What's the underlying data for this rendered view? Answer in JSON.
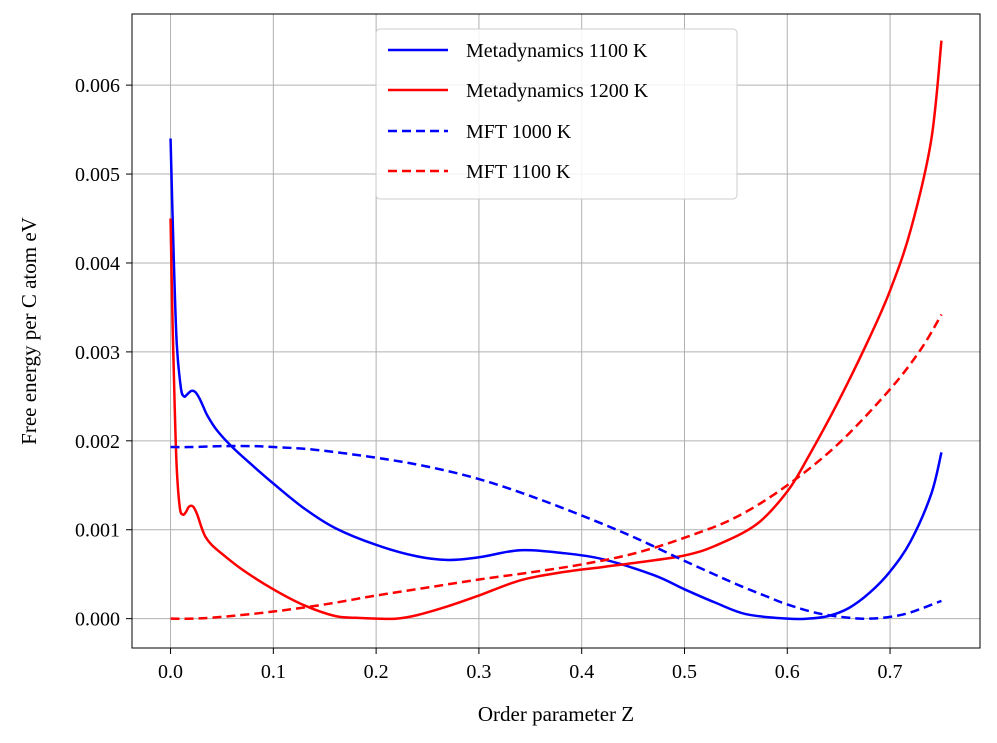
{
  "chart_data": {
    "type": "line",
    "title": "",
    "xlabel": "Order parameter Z",
    "ylabel": "Free energy per C atom eV",
    "xlim": [
      -0.0375,
      0.7875
    ],
    "ylim": [
      -0.00033,
      0.0068
    ],
    "xticks": [
      0.0,
      0.1,
      0.2,
      0.3,
      0.4,
      0.5,
      0.6,
      0.7
    ],
    "xtick_labels": [
      "0.0",
      "0.1",
      "0.2",
      "0.3",
      "0.4",
      "0.5",
      "0.6",
      "0.7"
    ],
    "yticks": [
      0.0,
      0.001,
      0.002,
      0.003,
      0.004,
      0.005,
      0.006
    ],
    "ytick_labels": [
      "0.000",
      "0.001",
      "0.002",
      "0.003",
      "0.004",
      "0.005",
      "0.006"
    ],
    "grid": true,
    "legend_position": "top-center",
    "series": [
      {
        "name": "Metadynamics 1100 K",
        "color": "#0000ff",
        "style": "solid",
        "x": [
          0.0,
          0.003,
          0.006,
          0.01,
          0.013,
          0.016,
          0.02,
          0.024,
          0.028,
          0.032,
          0.036,
          0.045,
          0.06,
          0.08,
          0.1,
          0.13,
          0.16,
          0.2,
          0.24,
          0.27,
          0.3,
          0.34,
          0.38,
          0.42,
          0.47,
          0.5,
          0.53,
          0.56,
          0.6,
          0.62,
          0.64,
          0.66,
          0.68,
          0.7,
          0.72,
          0.74,
          0.75
        ],
        "y": [
          0.0054,
          0.0041,
          0.0031,
          0.0026,
          0.0025,
          0.00252,
          0.00256,
          0.00255,
          0.00248,
          0.00238,
          0.00228,
          0.00212,
          0.00193,
          0.00172,
          0.00152,
          0.00124,
          0.00102,
          0.00083,
          0.0007,
          0.00066,
          0.00069,
          0.00077,
          0.00074,
          0.00067,
          0.00049,
          0.00033,
          0.00018,
          5e-05,
          0.0,
          0.0,
          3e-05,
          0.00012,
          0.00029,
          0.00053,
          0.00087,
          0.0014,
          0.00187
        ]
      },
      {
        "name": "Metadynamics 1200 K",
        "color": "#ff0000",
        "style": "solid",
        "x": [
          0.0,
          0.002,
          0.004,
          0.006,
          0.009,
          0.012,
          0.015,
          0.018,
          0.022,
          0.026,
          0.03,
          0.034,
          0.04,
          0.05,
          0.07,
          0.1,
          0.13,
          0.16,
          0.18,
          0.2,
          0.22,
          0.24,
          0.27,
          0.3,
          0.34,
          0.38,
          0.42,
          0.46,
          0.5,
          0.53,
          0.57,
          0.6,
          0.62,
          0.65,
          0.68,
          0.7,
          0.72,
          0.74,
          0.75
        ],
        "y": [
          0.0045,
          0.0033,
          0.0024,
          0.0017,
          0.00125,
          0.00117,
          0.0012,
          0.00126,
          0.00126,
          0.00117,
          0.00103,
          0.00092,
          0.00083,
          0.00073,
          0.00055,
          0.00033,
          0.00015,
          3e-05,
          1e-05,
          0.0,
          0.0,
          4e-05,
          0.00014,
          0.00026,
          0.00043,
          0.00052,
          0.00058,
          0.00064,
          0.00071,
          0.00082,
          0.00106,
          0.00143,
          0.00181,
          0.00245,
          0.00316,
          0.00369,
          0.00437,
          0.00538,
          0.0065
        ]
      },
      {
        "name": "MFT 1000 K",
        "color": "#0000ff",
        "style": "dashed",
        "x": [
          0.0,
          0.02,
          0.05,
          0.08,
          0.1,
          0.14,
          0.2,
          0.25,
          0.3,
          0.35,
          0.4,
          0.45,
          0.5,
          0.55,
          0.58,
          0.6,
          0.63,
          0.66,
          0.68,
          0.7,
          0.72,
          0.75
        ],
        "y": [
          0.00193,
          0.00193,
          0.00194,
          0.00194,
          0.00193,
          0.0019,
          0.00181,
          0.00171,
          0.00157,
          0.00138,
          0.00116,
          0.00092,
          0.00065,
          0.00039,
          0.00025,
          0.00016,
          6e-05,
          1e-05,
          0.0,
          2e-05,
          7e-05,
          0.0002
        ]
      },
      {
        "name": "MFT 1100 K",
        "color": "#ff0000",
        "style": "dashed",
        "x": [
          0.0,
          0.02,
          0.05,
          0.1,
          0.15,
          0.2,
          0.25,
          0.3,
          0.35,
          0.4,
          0.45,
          0.5,
          0.55,
          0.6,
          0.65,
          0.7,
          0.73,
          0.75
        ],
        "y": [
          0.0,
          0.0,
          2e-05,
          8e-05,
          0.00016,
          0.00026,
          0.00035,
          0.00044,
          0.00052,
          0.00061,
          0.00073,
          0.00091,
          0.00114,
          0.0015,
          0.00197,
          0.00258,
          0.00303,
          0.00342
        ]
      }
    ]
  }
}
